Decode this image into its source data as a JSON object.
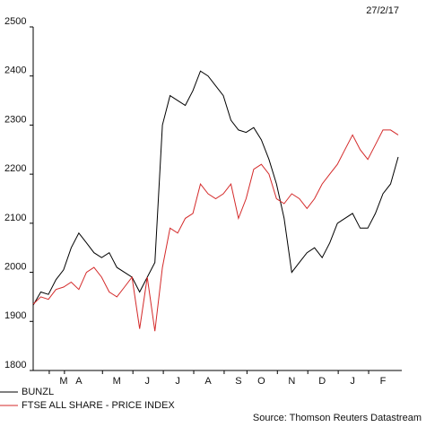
{
  "chart_data": {
    "type": "line",
    "date": "27/2/17",
    "source": "Source: Thomson Reuters Datastream",
    "categories": [
      null,
      null,
      null,
      null,
      "M",
      null,
      "A",
      null,
      null,
      null,
      null,
      "M",
      null,
      null,
      null,
      "J",
      null,
      null,
      null,
      "J",
      null,
      null,
      null,
      "A",
      null,
      null,
      null,
      "S",
      null,
      null,
      "O",
      null,
      null,
      null,
      "N",
      null,
      null,
      null,
      "D",
      null,
      null,
      null,
      "J",
      null,
      null,
      null,
      "F",
      null,
      null
    ],
    "series": [
      {
        "name": "BUNZL",
        "color": "#000000",
        "values": [
          1933,
          1960,
          1955,
          1985,
          2005,
          2050,
          2080,
          2060,
          2040,
          2030,
          2040,
          2010,
          2000,
          1990,
          1960,
          1990,
          2020,
          2300,
          2360,
          2350,
          2340,
          2370,
          2410,
          2400,
          2380,
          2360,
          2310,
          2290,
          2285,
          2295,
          2270,
          2230,
          2180,
          2110,
          2000,
          2020,
          2040,
          2050,
          2030,
          2060,
          2100,
          2110,
          2120,
          2090,
          2090,
          2120,
          2160,
          2180,
          2235
        ]
      },
      {
        "name": "FTSE ALL SHARE - PRICE INDEX",
        "color": "#d42a2a",
        "values": [
          1935,
          1950,
          1945,
          1965,
          1970,
          1980,
          1965,
          2000,
          2010,
          1990,
          1960,
          1950,
          1970,
          1990,
          1885,
          1990,
          1880,
          2010,
          2090,
          2080,
          2110,
          2120,
          2180,
          2160,
          2150,
          2160,
          2180,
          2110,
          2150,
          2210,
          2220,
          2200,
          2150,
          2140,
          2160,
          2150,
          2130,
          2150,
          2180,
          2200,
          2220,
          2250,
          2280,
          2250,
          2230,
          2260,
          2290,
          2290,
          2280
        ]
      }
    ],
    "ylim": [
      1800,
      2500
    ],
    "yticks": [
      1800,
      1900,
      2000,
      2100,
      2200,
      2300,
      2400,
      2500
    ],
    "grid": false
  }
}
